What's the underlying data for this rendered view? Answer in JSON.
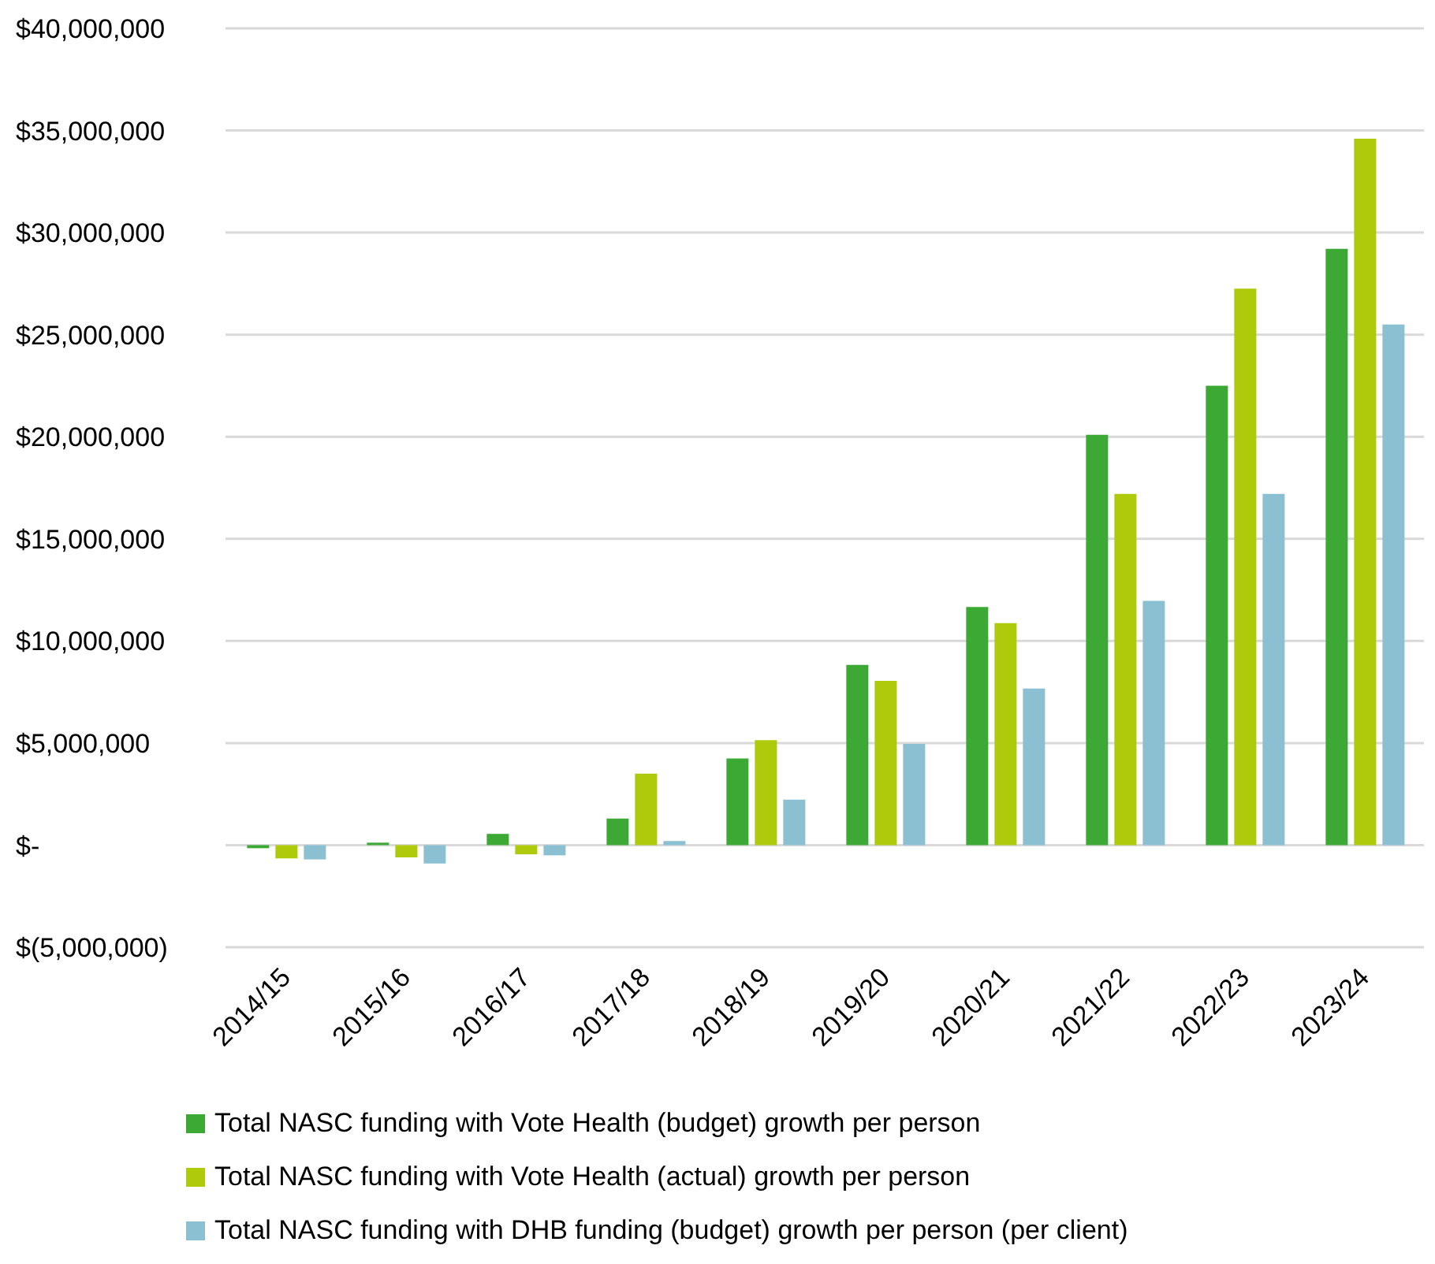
{
  "chart_data": {
    "type": "bar",
    "categories": [
      "2014/15",
      "2015/16",
      "2016/17",
      "2017/18",
      "2018/19",
      "2019/20",
      "2020/21",
      "2021/22",
      "2022/23",
      "2023/24"
    ],
    "series": [
      {
        "name": "Total NASC funding with Vote Health (budget) growth per person",
        "color": "#3ca935",
        "values": [
          -150000,
          120000,
          550000,
          1300000,
          4240000,
          8830000,
          11660000,
          20100000,
          22500000,
          29200000
        ]
      },
      {
        "name": "Total NASC funding with Vote Health (actual) growth per person",
        "color": "#afca0b",
        "values": [
          -650000,
          -600000,
          -450000,
          3500000,
          5140000,
          8040000,
          10870000,
          17200000,
          27250000,
          34600000
        ]
      },
      {
        "name": "Total NASC funding with DHB funding (budget) growth per person (per client)",
        "color": "#8bc0d2",
        "values": [
          -700000,
          -900000,
          -500000,
          200000,
          2230000,
          4960000,
          7670000,
          11960000,
          17200000,
          25500000
        ]
      }
    ],
    "ylim": [
      -5000000,
      40000000
    ],
    "yticks": [
      {
        "value": -5000000,
        "label": "$(5,000,000)"
      },
      {
        "value": 0,
        "label": "$-"
      },
      {
        "value": 5000000,
        "label": "$5,000,000"
      },
      {
        "value": 10000000,
        "label": "$10,000,000"
      },
      {
        "value": 15000000,
        "label": "$15,000,000"
      },
      {
        "value": 20000000,
        "label": "$20,000,000"
      },
      {
        "value": 25000000,
        "label": "$25,000,000"
      },
      {
        "value": 30000000,
        "label": "$30,000,000"
      },
      {
        "value": 35000000,
        "label": "$35,000,000"
      },
      {
        "value": 40000000,
        "label": "$40,000,000"
      }
    ],
    "grid": "y",
    "legend": "bottom"
  }
}
